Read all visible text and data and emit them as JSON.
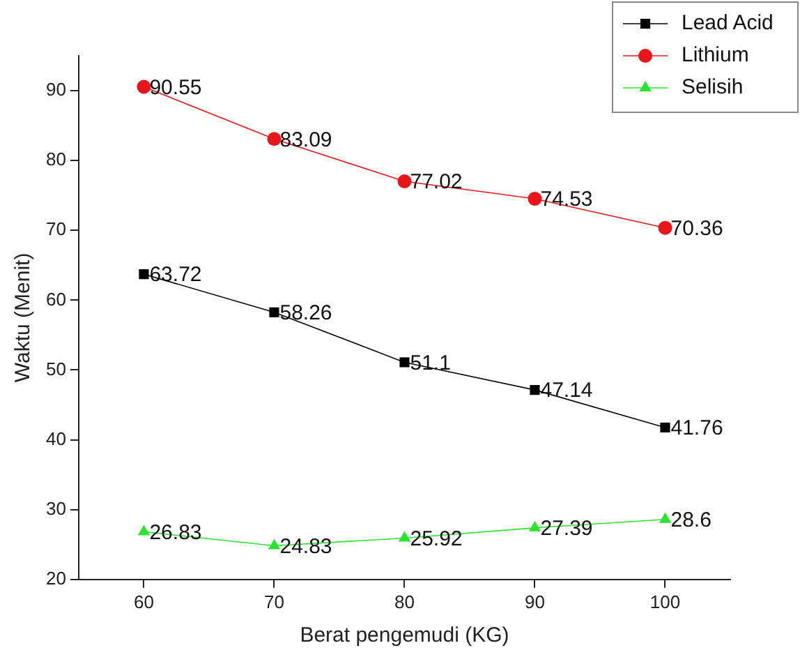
{
  "chart_data": {
    "type": "line",
    "xlabel": "Berat pengemudi (KG)",
    "ylabel": "Waktu (Menit)",
    "x": [
      60,
      70,
      80,
      90,
      100
    ],
    "series": [
      {
        "name": "Lead Acid",
        "color": "#000000",
        "marker": "square",
        "values": [
          63.72,
          58.26,
          51.1,
          47.14,
          41.76
        ]
      },
      {
        "name": "Lithium",
        "color": "#e8161b",
        "marker": "circle",
        "values": [
          90.55,
          83.09,
          77.02,
          74.53,
          70.36
        ]
      },
      {
        "name": "Selisih",
        "color": "#29e62c",
        "marker": "triangle",
        "values": [
          26.83,
          24.83,
          25.92,
          27.39,
          28.6
        ]
      }
    ],
    "xlim": [
      55,
      105
    ],
    "xticks": [
      60,
      70,
      80,
      90,
      100
    ],
    "ylim": [
      20,
      95
    ],
    "yticks": [
      20,
      30,
      40,
      50,
      60,
      70,
      80,
      90
    ],
    "grid": false,
    "legend": "top right",
    "data_labels": true,
    "line_style": "solid"
  }
}
